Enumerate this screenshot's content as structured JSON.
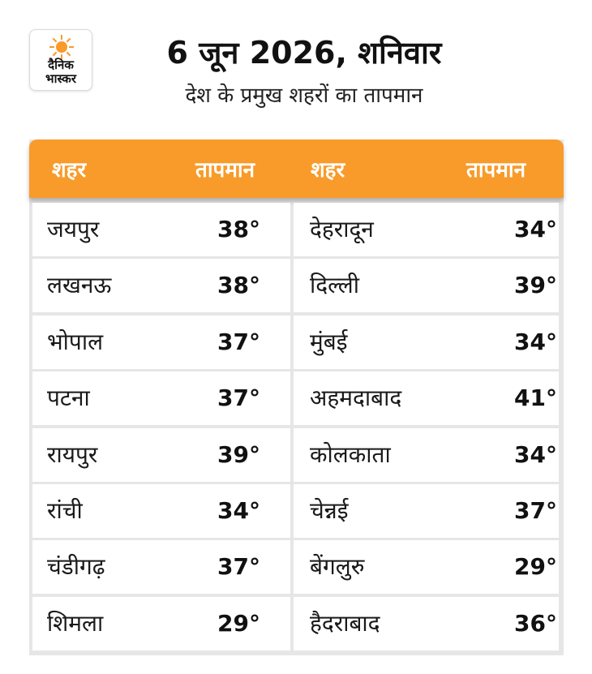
{
  "logo": {
    "line1": "दैनिक",
    "line2": "भास्कर",
    "brand_color": "#f89b2a"
  },
  "header": {
    "title": "6 जून 2026, शनिवार",
    "subtitle": "देश के प्रमुख शहरों का तापमान"
  },
  "table": {
    "columns": [
      "शहर",
      "तापमान",
      "शहर",
      "तापमान"
    ],
    "header_color": "#f89b2a",
    "rows": [
      {
        "city1": "जयपुर",
        "temp1": "38°",
        "city2": "देहरादून",
        "temp2": "34°"
      },
      {
        "city1": "लखनऊ",
        "temp1": "38°",
        "city2": "दिल्ली",
        "temp2": "39°"
      },
      {
        "city1": "भोपाल",
        "temp1": "37°",
        "city2": "मुंबई",
        "temp2": "34°"
      },
      {
        "city1": "पटना",
        "temp1": "37°",
        "city2": "अहमदाबाद",
        "temp2": "41°"
      },
      {
        "city1": "रायपुर",
        "temp1": "39°",
        "city2": "कोलकाता",
        "temp2": "34°"
      },
      {
        "city1": "रांची",
        "temp1": "34°",
        "city2": "चेन्नई",
        "temp2": "37°"
      },
      {
        "city1": "चंडीगढ़",
        "temp1": "37°",
        "city2": "बेंगलुरु",
        "temp2": "29°"
      },
      {
        "city1": "शिमला",
        "temp1": "29°",
        "city2": "हैदराबाद",
        "temp2": "36°"
      }
    ]
  }
}
